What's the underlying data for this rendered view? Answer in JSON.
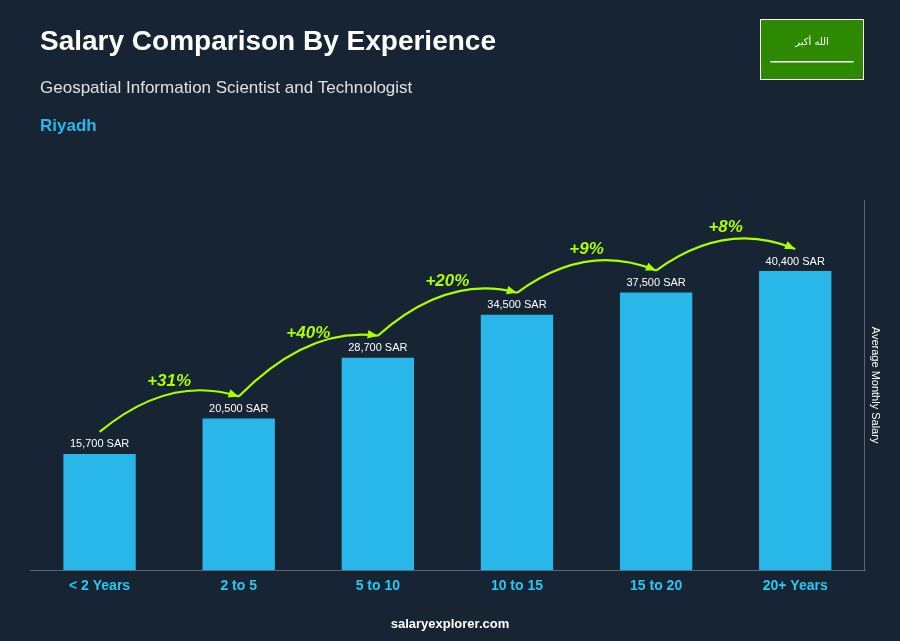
{
  "chart_data": {
    "type": "bar",
    "title": "Salary Comparison By Experience",
    "subtitle": "Geospatial Information Scientist and Technologist",
    "location": "Riyadh",
    "categories": [
      "< 2 Years",
      "2 to 5",
      "5 to 10",
      "10 to 15",
      "15 to 20",
      "20+ Years"
    ],
    "values": [
      15700,
      20500,
      28700,
      34500,
      37500,
      40400
    ],
    "value_labels": [
      "15,700 SAR",
      "20,500 SAR",
      "28,700 SAR",
      "34,500 SAR",
      "37,500 SAR",
      "40,400 SAR"
    ],
    "data_labels": true,
    "annotations": [
      "+31%",
      "+40%",
      "+20%",
      "+9%",
      "+8%"
    ],
    "color": "#29b6e8",
    "y_label": "Average Monthly Salary",
    "ylim": [
      0,
      50000
    ],
    "grid": false,
    "tick_labels": "x",
    "flag_text": "الله أكبر",
    "footer": "salaryexplorer.com"
  }
}
